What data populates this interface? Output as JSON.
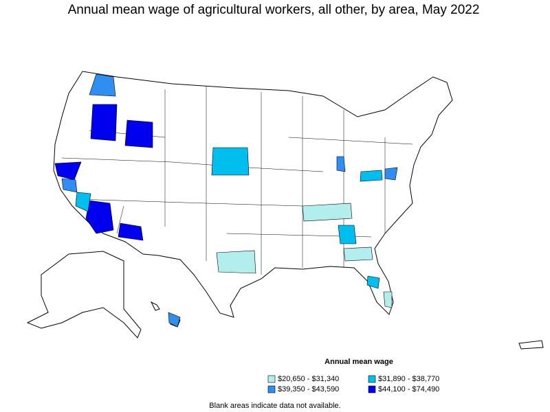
{
  "title": "Annual mean wage of agricultural workers, all other, by area, May 2022",
  "legend": {
    "title": "Annual mean wage",
    "items": [
      {
        "label": "$20,650 - $31,340",
        "color": "#b2eeee"
      },
      {
        "label": "$31,890 - $38,770",
        "color": "#00bfef"
      },
      {
        "label": "$39,350 - $43,590",
        "color": "#2f8ef0"
      },
      {
        "label": "$44,100 - $74,490",
        "color": "#0000ee"
      }
    ]
  },
  "note": "Blank areas indicate data not available."
}
